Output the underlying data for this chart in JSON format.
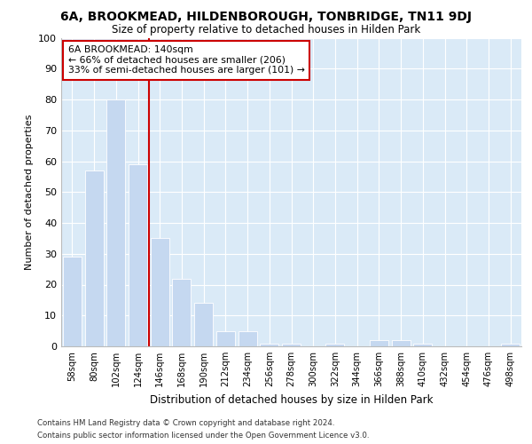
{
  "title": "6A, BROOKMEAD, HILDENBOROUGH, TONBRIDGE, TN11 9DJ",
  "subtitle": "Size of property relative to detached houses in Hilden Park",
  "xlabel": "Distribution of detached houses by size in Hilden Park",
  "ylabel": "Number of detached properties",
  "bar_labels": [
    "58sqm",
    "80sqm",
    "102sqm",
    "124sqm",
    "146sqm",
    "168sqm",
    "190sqm",
    "212sqm",
    "234sqm",
    "256sqm",
    "278sqm",
    "300sqm",
    "322sqm",
    "344sqm",
    "366sqm",
    "388sqm",
    "410sqm",
    "432sqm",
    "454sqm",
    "476sqm",
    "498sqm"
  ],
  "bar_values": [
    29,
    57,
    80,
    59,
    35,
    22,
    14,
    5,
    5,
    1,
    1,
    0,
    1,
    0,
    2,
    2,
    1,
    0,
    0,
    0,
    1
  ],
  "bar_color": "#c5d8f0",
  "bar_edge_color": "#c5d8f0",
  "vline_x": 3.5,
  "vline_color": "#cc0000",
  "annotation_text": "6A BROOKMEAD: 140sqm\n← 66% of detached houses are smaller (206)\n33% of semi-detached houses are larger (101) →",
  "annotation_box_color": "#ffffff",
  "annotation_box_edge_color": "#cc0000",
  "ylim": [
    0,
    100
  ],
  "yticks": [
    0,
    10,
    20,
    30,
    40,
    50,
    60,
    70,
    80,
    90,
    100
  ],
  "fig_bg_color": "#ffffff",
  "plot_bg_color": "#daeaf7",
  "grid_color": "#ffffff",
  "footer_line1": "Contains HM Land Registry data © Crown copyright and database right 2024.",
  "footer_line2": "Contains public sector information licensed under the Open Government Licence v3.0."
}
